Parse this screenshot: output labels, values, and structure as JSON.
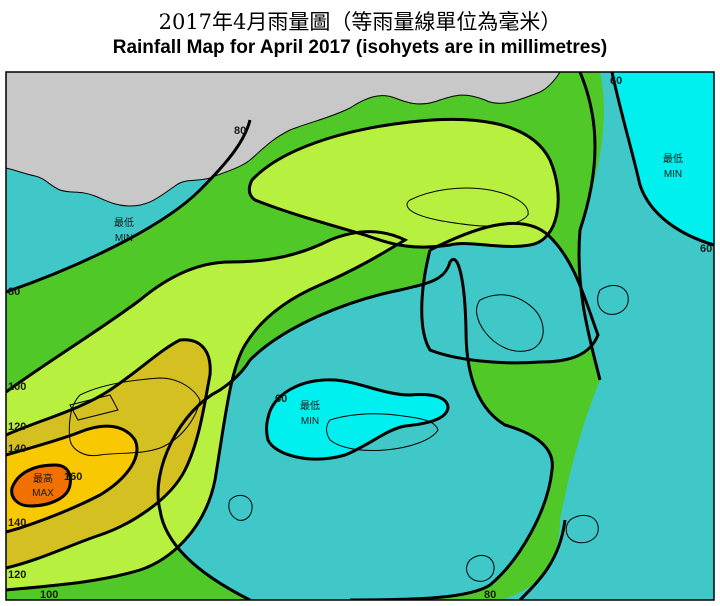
{
  "title": {
    "zh": "2017年4月雨量圖（等雨量線單位為毫米）",
    "en": "Rainfall Map for April 2017 (isohyets are in millimetres)"
  },
  "colors": {
    "band_lt60": "#00f0f0",
    "band_60_80": "#40c8c8",
    "band_80_100": "#50c828",
    "band_100_120": "#b8f040",
    "band_120_140": "#d4c020",
    "band_140_160": "#f8c800",
    "band_gt160": "#f07000",
    "land_outside": "#c8c8c8",
    "isohyet": "#000000"
  },
  "isohyet_labels": [
    "80",
    "60",
    "60",
    "80",
    "100",
    "120",
    "140",
    "140",
    "120",
    "100",
    "60",
    "160",
    "80"
  ],
  "zones": {
    "min_west_zh": "最低",
    "min_west_en": "MIN",
    "min_east_zh": "最低",
    "min_east_en": "MIN",
    "min_centre_zh": "最低",
    "min_centre_en": "MIN",
    "max_zh": "最高",
    "max_en": "MAX"
  }
}
